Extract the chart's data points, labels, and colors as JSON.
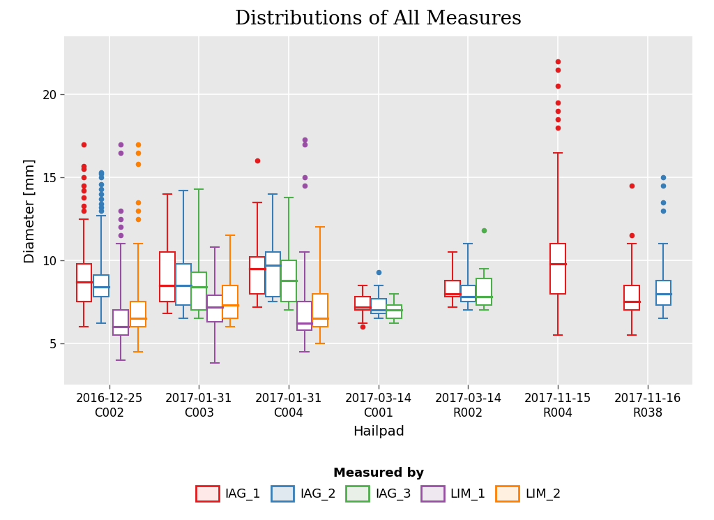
{
  "title": "Distributions of All Measures",
  "xlabel": "Hailpad",
  "ylabel": "Diameter [mm]",
  "background_color": "#e8e8e8",
  "ylim": [
    2.5,
    23.5
  ],
  "yticks": [
    5,
    10,
    15,
    20
  ],
  "groups": [
    {
      "label": "2016-12-25\nC002",
      "key": "C002"
    },
    {
      "label": "2017-01-31\nC003",
      "key": "C003"
    },
    {
      "label": "2017-01-31\nC004",
      "key": "C004"
    },
    {
      "label": "2017-03-14\nC001",
      "key": "C001"
    },
    {
      "label": "2017-03-14\nR002",
      "key": "R002"
    },
    {
      "label": "2017-11-15\nR004",
      "key": "R004"
    },
    {
      "label": "2017-11-16\nR038",
      "key": "R038"
    }
  ],
  "measures": [
    "IAG_1",
    "IAG_2",
    "IAG_3",
    "LIM_1",
    "LIM_2"
  ],
  "colors": {
    "IAG_1": "#e41a1c",
    "IAG_2": "#377eb8",
    "IAG_3": "#4daf4a",
    "LIM_1": "#984ea3",
    "LIM_2": "#ff7f00"
  },
  "box_data": {
    "C002": {
      "IAG_1": {
        "q1": 7.5,
        "median": 8.7,
        "q3": 9.8,
        "whislo": 6.0,
        "whishi": 12.5,
        "fliers": [
          13.0,
          13.3,
          13.8,
          14.2,
          14.5,
          15.0,
          15.5,
          15.7,
          17.0
        ]
      },
      "IAG_2": {
        "q1": 7.8,
        "median": 8.4,
        "q3": 9.1,
        "whislo": 6.2,
        "whishi": 12.7,
        "fliers": [
          13.0,
          13.2,
          13.4,
          13.7,
          14.0,
          14.3,
          14.6,
          15.0,
          15.2,
          15.3
        ]
      },
      "IAG_3": null,
      "LIM_1": {
        "q1": 5.5,
        "median": 6.0,
        "q3": 7.0,
        "whislo": 4.0,
        "whishi": 11.0,
        "fliers": [
          11.5,
          12.0,
          12.5,
          13.0,
          16.5,
          17.0
        ]
      },
      "LIM_2": {
        "q1": 6.0,
        "median": 6.5,
        "q3": 7.5,
        "whislo": 4.5,
        "whishi": 11.0,
        "fliers": [
          12.5,
          13.0,
          13.5,
          15.8,
          16.5,
          17.0
        ]
      }
    },
    "C003": {
      "IAG_1": {
        "q1": 7.5,
        "median": 8.5,
        "q3": 10.5,
        "whislo": 6.8,
        "whishi": 14.0,
        "fliers": []
      },
      "IAG_2": {
        "q1": 7.3,
        "median": 8.5,
        "q3": 9.8,
        "whislo": 6.5,
        "whishi": 14.2,
        "fliers": []
      },
      "IAG_3": {
        "q1": 7.0,
        "median": 8.4,
        "q3": 9.3,
        "whislo": 6.5,
        "whishi": 14.3,
        "fliers": []
      },
      "LIM_1": {
        "q1": 6.3,
        "median": 7.2,
        "q3": 7.9,
        "whislo": 3.8,
        "whishi": 10.8,
        "fliers": []
      },
      "LIM_2": {
        "q1": 6.5,
        "median": 7.3,
        "q3": 8.5,
        "whislo": 6.0,
        "whishi": 11.5,
        "fliers": []
      }
    },
    "C004": {
      "IAG_1": {
        "q1": 8.0,
        "median": 9.5,
        "q3": 10.2,
        "whislo": 7.2,
        "whishi": 13.5,
        "fliers": [
          16.0
        ]
      },
      "IAG_2": {
        "q1": 7.8,
        "median": 9.7,
        "q3": 10.5,
        "whislo": 7.5,
        "whishi": 14.0,
        "fliers": []
      },
      "IAG_3": {
        "q1": 7.5,
        "median": 8.8,
        "q3": 10.0,
        "whislo": 7.0,
        "whishi": 13.8,
        "fliers": []
      },
      "LIM_1": {
        "q1": 5.8,
        "median": 6.2,
        "q3": 7.5,
        "whislo": 4.5,
        "whishi": 10.5,
        "fliers": [
          14.5,
          15.0,
          17.0,
          17.3
        ]
      },
      "LIM_2": {
        "q1": 6.0,
        "median": 6.5,
        "q3": 8.0,
        "whislo": 5.0,
        "whishi": 12.0,
        "fliers": []
      }
    },
    "C001": {
      "IAG_1": {
        "q1": 7.0,
        "median": 7.2,
        "q3": 7.8,
        "whislo": 6.2,
        "whishi": 8.5,
        "fliers": [
          6.0
        ]
      },
      "IAG_2": {
        "q1": 6.8,
        "median": 7.0,
        "q3": 7.7,
        "whislo": 6.5,
        "whishi": 8.5,
        "fliers": [
          9.3
        ]
      },
      "IAG_3": {
        "q1": 6.5,
        "median": 7.0,
        "q3": 7.3,
        "whislo": 6.2,
        "whishi": 8.0,
        "fliers": []
      },
      "LIM_1": null,
      "LIM_2": null
    },
    "R002": {
      "IAG_1": {
        "q1": 7.8,
        "median": 8.0,
        "q3": 8.8,
        "whislo": 7.2,
        "whishi": 10.5,
        "fliers": []
      },
      "IAG_2": {
        "q1": 7.5,
        "median": 7.8,
        "q3": 8.5,
        "whislo": 7.0,
        "whishi": 11.0,
        "fliers": []
      },
      "IAG_3": {
        "q1": 7.3,
        "median": 7.8,
        "q3": 8.9,
        "whislo": 7.0,
        "whishi": 9.5,
        "fliers": [
          11.8
        ]
      },
      "LIM_1": null,
      "LIM_2": null
    },
    "R004": {
      "IAG_1": {
        "q1": 8.0,
        "median": 9.8,
        "q3": 11.0,
        "whislo": 5.5,
        "whishi": 16.5,
        "fliers": [
          18.0,
          18.5,
          19.0,
          19.5,
          20.5,
          21.5,
          22.0
        ]
      },
      "IAG_2": null,
      "IAG_3": null,
      "LIM_1": null,
      "LIM_2": null
    },
    "R038": {
      "IAG_1": {
        "q1": 7.0,
        "median": 7.5,
        "q3": 8.5,
        "whislo": 5.5,
        "whishi": 11.0,
        "fliers": [
          11.5,
          14.5
        ]
      },
      "IAG_2": {
        "q1": 7.3,
        "median": 8.0,
        "q3": 8.8,
        "whislo": 6.5,
        "whishi": 11.0,
        "fliers": [
          13.0,
          13.5,
          14.5,
          15.0
        ]
      },
      "IAG_3": null,
      "LIM_1": null,
      "LIM_2": null
    }
  },
  "group_order": [
    "C002",
    "C003",
    "C004",
    "C001",
    "R002",
    "R004",
    "R038"
  ],
  "measure_offsets": {
    "C002": {
      "IAG_1": -0.28,
      "IAG_2": -0.09,
      "LIM_1": 0.13,
      "LIM_2": 0.32
    },
    "C003": {
      "IAG_1": -0.35,
      "IAG_2": -0.175,
      "IAG_3": 0.0,
      "LIM_1": 0.175,
      "LIM_2": 0.35
    },
    "C004": {
      "IAG_1": -0.35,
      "IAG_2": -0.175,
      "IAG_3": 0.0,
      "LIM_1": 0.175,
      "LIM_2": 0.35
    },
    "C001": {
      "IAG_1": -0.175,
      "IAG_2": 0.0,
      "IAG_3": 0.175
    },
    "R002": {
      "IAG_1": -0.175,
      "IAG_2": 0.0,
      "IAG_3": 0.175
    },
    "R004": {
      "IAG_1": 0.0
    },
    "R038": {
      "IAG_1": -0.175,
      "IAG_2": 0.175
    }
  },
  "title_fontsize": 20,
  "axis_label_fontsize": 14,
  "tick_fontsize": 12,
  "legend_fontsize": 13,
  "box_width": 0.17
}
